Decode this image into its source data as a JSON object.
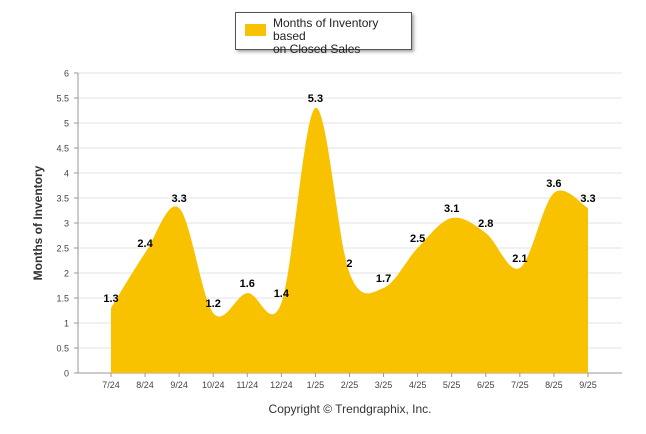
{
  "chart_data": {
    "type": "area",
    "title": "",
    "xlabel": "",
    "ylabel": "Months of Inventory",
    "ylim": [
      0,
      6
    ],
    "yticks": [
      "0",
      "0.5",
      "1",
      "1.5",
      "2",
      "2.5",
      "3",
      "3.5",
      "4",
      "4.5",
      "5",
      "5.5",
      "6"
    ],
    "categories": [
      "7/24",
      "8/24",
      "9/24",
      "10/24",
      "11/24",
      "12/24",
      "1/25",
      "2/25",
      "3/25",
      "4/25",
      "5/25",
      "6/25",
      "7/25",
      "8/25",
      "9/25"
    ],
    "series": [
      {
        "name": "Months of Inventory based on Closed Sales",
        "values": [
          1.3,
          2.4,
          3.3,
          1.2,
          1.6,
          1.4,
          5.3,
          2,
          1.7,
          2.5,
          3.1,
          2.8,
          2.1,
          3.6,
          3.3
        ],
        "color": "#F8C200"
      }
    ],
    "legend": {
      "line1": "Months of Inventory based",
      "line2": "on Closed Sales",
      "position": "top-center"
    },
    "grid": true
  },
  "footer": {
    "copyright": "Copyright © Trendgraphix, Inc."
  }
}
